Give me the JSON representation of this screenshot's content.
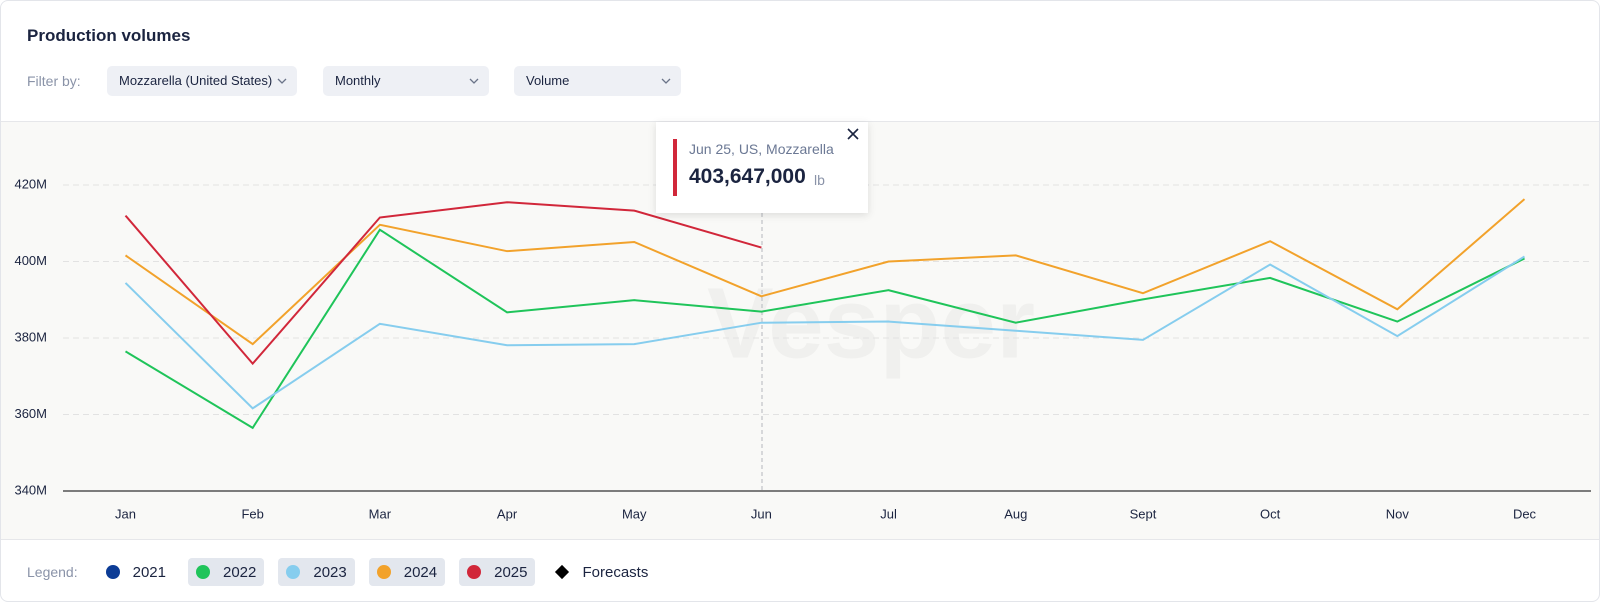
{
  "header": {
    "title": "Production volumes",
    "filter_label": "Filter by:",
    "filters": [
      "Mozzarella (United States)",
      "Monthly",
      "Volume"
    ]
  },
  "watermark": "Vesper",
  "chart_data": {
    "type": "line",
    "categories": [
      "Jan",
      "Feb",
      "Mar",
      "Apr",
      "May",
      "Jun",
      "Jul",
      "Aug",
      "Sept",
      "Oct",
      "Nov",
      "Dec"
    ],
    "series": [
      {
        "name": "2021",
        "color": "#0c3c96",
        "active": false,
        "values": [
          null,
          null,
          null,
          null,
          null,
          null,
          null,
          null,
          null,
          null,
          null,
          null
        ]
      },
      {
        "name": "2022",
        "color": "#1fc45a",
        "active": true,
        "values": [
          376500000,
          356500000,
          408300000,
          386700000,
          389900000,
          386900000,
          392500000,
          384000000,
          390100000,
          395700000,
          384300000,
          400800000
        ]
      },
      {
        "name": "2023",
        "color": "#86cdee",
        "active": true,
        "values": [
          394400000,
          361600000,
          383700000,
          378100000,
          378400000,
          384000000,
          384300000,
          381900000,
          379500000,
          399200000,
          380500000,
          401300000
        ]
      },
      {
        "name": "2024",
        "color": "#f2a22b",
        "active": true,
        "values": [
          401600000,
          378400000,
          409600000,
          402700000,
          405100000,
          390900000,
          400000000,
          401600000,
          391700000,
          405300000,
          387500000,
          416300000
        ]
      },
      {
        "name": "2025",
        "color": "#d1273a",
        "active": true,
        "values": [
          412000000,
          373300000,
          411500000,
          415500000,
          413300000,
          403647000,
          null,
          null,
          null,
          null,
          null,
          null
        ]
      }
    ],
    "ylim": [
      340000000,
      436000000
    ],
    "yticks": [
      {
        "value": 340000000,
        "label": "340M"
      },
      {
        "value": 360000000,
        "label": "360M"
      },
      {
        "value": 380000000,
        "label": "380M"
      },
      {
        "value": 400000000,
        "label": "400M"
      },
      {
        "value": 420000000,
        "label": "420M"
      }
    ],
    "grid": true
  },
  "tooltip": {
    "title": "Jun 25, US, Mozzarella",
    "value": 403647000,
    "value_label": "403,647,000",
    "unit": "lb"
  },
  "legend": {
    "label": "Legend:",
    "forecasts": "Forecasts"
  }
}
